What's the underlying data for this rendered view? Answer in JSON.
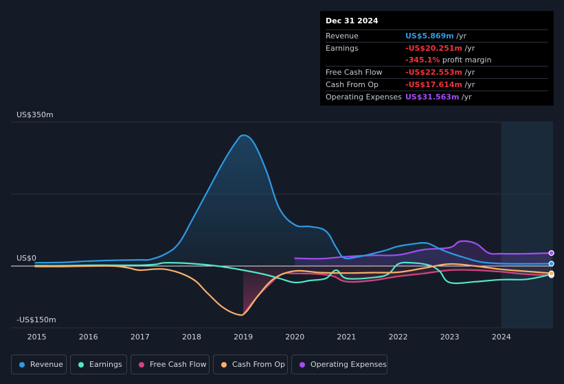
{
  "tooltip": {
    "date": "Dec 31 2024",
    "rows": [
      {
        "label": "Revenue",
        "value": "US$5.869m",
        "unit": " /yr",
        "color": "#2f9ae5"
      },
      {
        "label": "Earnings",
        "value": "-US$20.251m",
        "unit": " /yr",
        "color": "#f2343d"
      },
      {
        "label": "",
        "value": "-345.1%",
        "unit": " profit margin",
        "color": "#f2343d"
      },
      {
        "label": "Free Cash Flow",
        "value": "-US$22.553m",
        "unit": " /yr",
        "color": "#f2343d"
      },
      {
        "label": "Cash From Op",
        "value": "-US$17.614m",
        "unit": " /yr",
        "color": "#f2343d"
      },
      {
        "label": "Operating Expenses",
        "value": "US$31.563m",
        "unit": " /yr",
        "color": "#a24ff2"
      }
    ]
  },
  "legend": [
    {
      "label": "Revenue",
      "color": "#2f9ae5"
    },
    {
      "label": "Earnings",
      "color": "#55e6c8"
    },
    {
      "label": "Free Cash Flow",
      "color": "#d1467c"
    },
    {
      "label": "Cash From Op",
      "color": "#f5b26b"
    },
    {
      "label": "Operating Expenses",
      "color": "#a24ff2"
    }
  ],
  "chart_data": {
    "type": "area",
    "y_tick_labels": {
      "top": "US$350m",
      "zero": "US$0",
      "bottom": "-US$150m"
    },
    "ylim": [
      -150,
      350
    ],
    "xlim": [
      2014.5,
      2025.0
    ],
    "x_ticks": [
      2015,
      2016,
      2017,
      2018,
      2019,
      2020,
      2021,
      2022,
      2023,
      2024
    ],
    "x_tick_labels": [
      "2015",
      "2016",
      "2017",
      "2018",
      "2019",
      "2020",
      "2021",
      "2022",
      "2023",
      "2024"
    ],
    "highlight_from": 2024.0,
    "series": [
      {
        "name": "Revenue",
        "color": "#2f9ae5",
        "fill": true,
        "x": [
          2014.97,
          2015.5,
          2016.0,
          2016.5,
          2017.0,
          2017.2,
          2017.5,
          2017.75,
          2018.0,
          2018.3,
          2018.6,
          2018.85,
          2019.0,
          2019.2,
          2019.45,
          2019.7,
          2020.0,
          2020.3,
          2020.6,
          2020.8,
          2020.95,
          2021.2,
          2021.5,
          2021.75,
          2022.0,
          2022.25,
          2022.55,
          2022.8,
          2023.0,
          2023.3,
          2023.6,
          2024.0,
          2024.5,
          2024.97
        ],
        "y": [
          8,
          9,
          12,
          14,
          15,
          16,
          30,
          55,
          110,
          180,
          250,
          300,
          318,
          300,
          230,
          140,
          100,
          96,
          85,
          45,
          20,
          22,
          30,
          38,
          48,
          53,
          56,
          42,
          32,
          20,
          10,
          6,
          5.5,
          5.9
        ]
      },
      {
        "name": "Earnings",
        "color": "#55e6c8",
        "fill": false,
        "x": [
          2014.97,
          2015.5,
          2016.0,
          2016.5,
          2017.0,
          2017.3,
          2017.5,
          2018.0,
          2018.5,
          2019.0,
          2019.4,
          2019.7,
          2020.0,
          2020.3,
          2020.6,
          2020.8,
          2021.0,
          2021.5,
          2021.8,
          2022.0,
          2022.25,
          2022.6,
          2022.8,
          2023.0,
          2023.5,
          2024.0,
          2024.5,
          2024.97
        ],
        "y": [
          1,
          1,
          2,
          2,
          2,
          4,
          8,
          6,
          0,
          -10,
          -20,
          -30,
          -40,
          -35,
          -30,
          -10,
          -30,
          -28,
          -20,
          5,
          8,
          2,
          -12,
          -40,
          -38,
          -33,
          -32,
          -20
        ]
      },
      {
        "name": "Free Cash Flow",
        "color": "#d1467c",
        "fill": true,
        "x": [
          2019.0,
          2019.2,
          2019.5,
          2019.75,
          2020.0,
          2020.5,
          2020.75,
          2021.0,
          2021.5,
          2022.0,
          2022.5,
          2023.0,
          2023.5,
          2024.0,
          2024.5,
          2024.97
        ],
        "y": [
          -118,
          -85,
          -45,
          -20,
          -18,
          -20,
          -25,
          -38,
          -35,
          -25,
          -18,
          -10,
          -10,
          -14,
          -20,
          -22.5
        ]
      },
      {
        "name": "Cash From Op",
        "color": "#f5b26b",
        "fill": false,
        "x": [
          2014.97,
          2015.5,
          2016.0,
          2016.5,
          2016.8,
          2017.0,
          2017.5,
          2018.0,
          2018.3,
          2018.6,
          2018.9,
          2019.05,
          2019.3,
          2019.6,
          2020.0,
          2020.5,
          2021.0,
          2021.5,
          2022.0,
          2022.5,
          2023.0,
          2023.5,
          2024.0,
          2024.5,
          2024.97
        ],
        "y": [
          -1,
          -1,
          0,
          0,
          -5,
          -10,
          -8,
          -30,
          -65,
          -100,
          -118,
          -112,
          -70,
          -30,
          -12,
          -16,
          -17,
          -16,
          -15,
          -5,
          5,
          0,
          -8,
          -13,
          -17.6
        ]
      },
      {
        "name": "Operating Expenses",
        "color": "#a24ff2",
        "fill": true,
        "x": [
          2020.0,
          2020.5,
          2021.0,
          2021.5,
          2022.0,
          2022.5,
          2023.0,
          2023.2,
          2023.5,
          2023.75,
          2024.0,
          2024.5,
          2024.97
        ],
        "y": [
          19,
          18,
          23,
          26,
          27,
          40,
          45,
          60,
          55,
          32,
          30,
          30,
          31.6
        ]
      }
    ]
  }
}
